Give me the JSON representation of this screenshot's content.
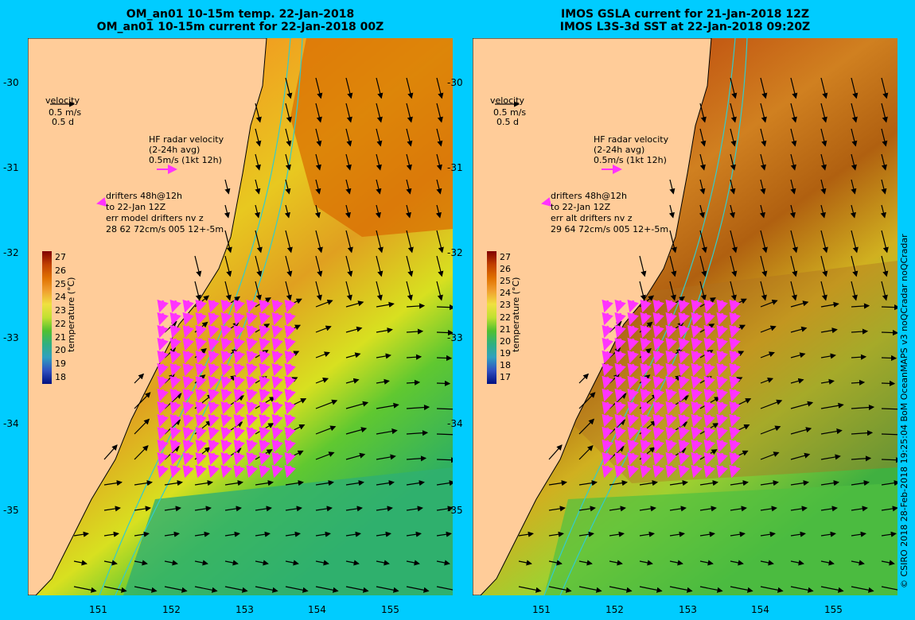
{
  "left": {
    "title1": "OM_an01 10-15m temp. 22-Jan-2018",
    "title2": "OM_an01 10-15m current for 22-Jan-2018 00Z",
    "velocity": {
      "label": "velocity",
      "speed": "0.5 m/s",
      "duration": "0.5 d"
    },
    "hf": {
      "l1": "HF radar velocity",
      "l2": "(2-24h avg)",
      "l3": "0.5m/s (1kt 12h)"
    },
    "drifters": {
      "l1": "drifters 48h@12h",
      "l2": "to 22-Jan 12Z",
      "l3": "err model drifters nv z",
      "l4": "28 62 72cm/s 005 12+-5m"
    },
    "colorbar": {
      "title": "temperature (°C)",
      "labels": [
        "27",
        "26",
        "25",
        "24",
        "23",
        "22",
        "21",
        "20",
        "19",
        "18"
      ]
    }
  },
  "right": {
    "title1": "IMOS GSLA current for 21-Jan-2018 12Z",
    "title2": "IMOS L3S-3d SST at 22-Jan-2018 09:20Z",
    "velocity": {
      "label": "velocity",
      "speed": "0.5 m/s",
      "duration": "0.5 d"
    },
    "hf": {
      "l1": "HF radar velocity",
      "l2": "(2-24h avg)",
      "l3": "0.5m/s (1kt 12h)"
    },
    "drifters": {
      "l1": "drifters 48h@12h",
      "l2": "to 22-Jan 12Z",
      "l3": "err alt drifters nv z",
      "l4": "29 64 72cm/s 005 12+-5m"
    },
    "colorbar": {
      "title": "temperature (°C)",
      "labels": [
        "27",
        "26",
        "25",
        "24",
        "23",
        "22",
        "21",
        "20",
        "19",
        "18",
        "17"
      ]
    }
  },
  "axes": {
    "lat_labels": [
      "-30",
      "-31",
      "-32",
      "-33",
      "-34",
      "-35"
    ],
    "lon_labels": [
      "151",
      "152",
      "153",
      "154",
      "155"
    ]
  },
  "credit": "© CSIRO 2018  28-Feb-2018 19:25:04 BoM OceanMAPS v3 noQCradar noQCradar",
  "colors": {
    "background": "#00ccff",
    "land": "#ffcc99",
    "drifter": "#ff33ff",
    "contour": "#33cccc"
  }
}
